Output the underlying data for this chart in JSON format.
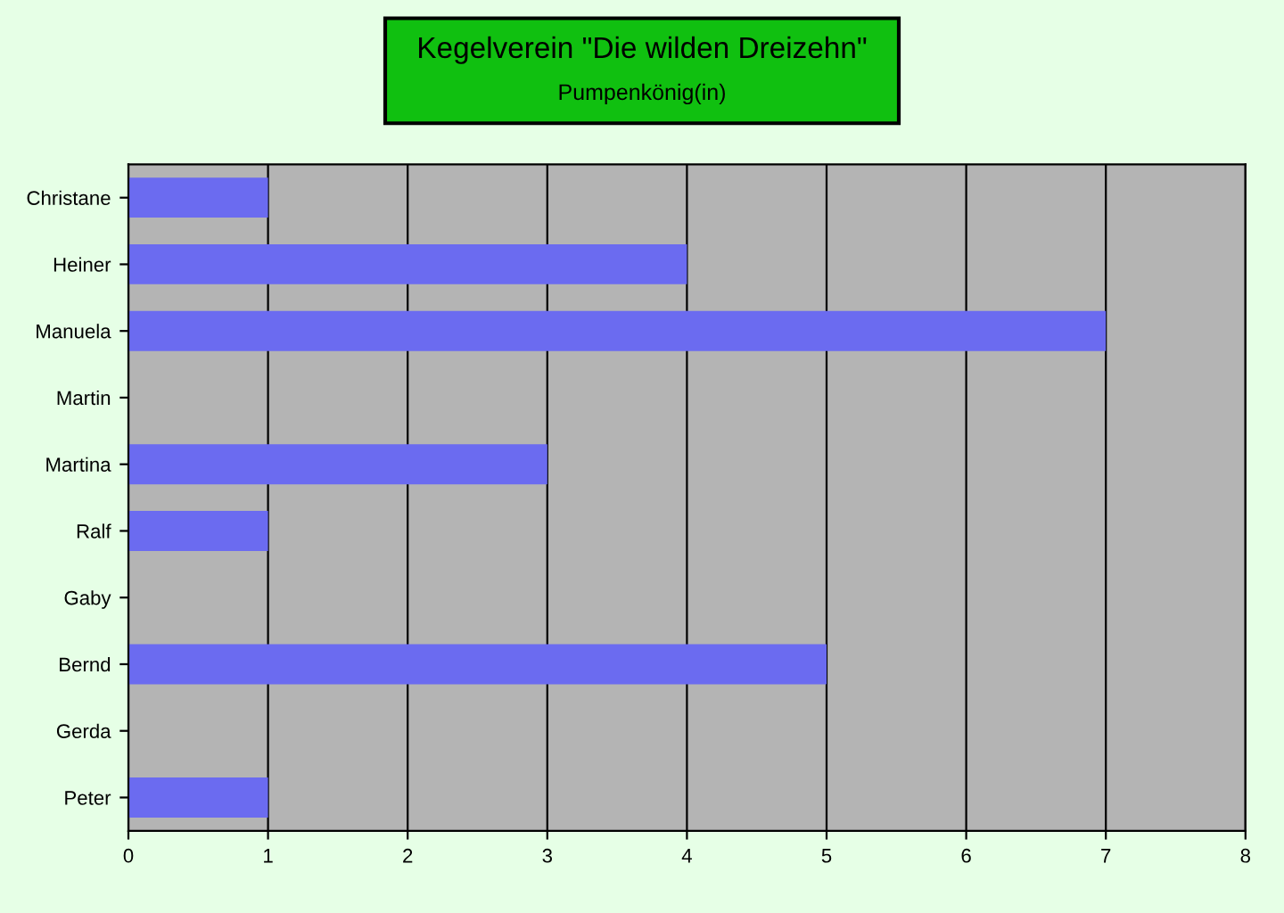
{
  "chart_data": {
    "type": "bar",
    "orientation": "horizontal",
    "title": "Kegelverein \"Die wilden Dreizehn\"",
    "subtitle": "Pumpenkönig(in)",
    "categories": [
      "Christane",
      "Heiner",
      "Manuela",
      "Martin",
      "Martina",
      "Ralf",
      "Gaby",
      "Bernd",
      "Gerda",
      "Peter"
    ],
    "values": [
      1,
      4,
      7,
      0,
      3,
      1,
      0,
      5,
      0,
      1
    ],
    "color": "#6b6bf0",
    "xlim": [
      0,
      8
    ],
    "xticks": [
      0,
      1,
      2,
      3,
      4,
      5,
      6,
      7,
      8
    ],
    "grid": "x"
  }
}
